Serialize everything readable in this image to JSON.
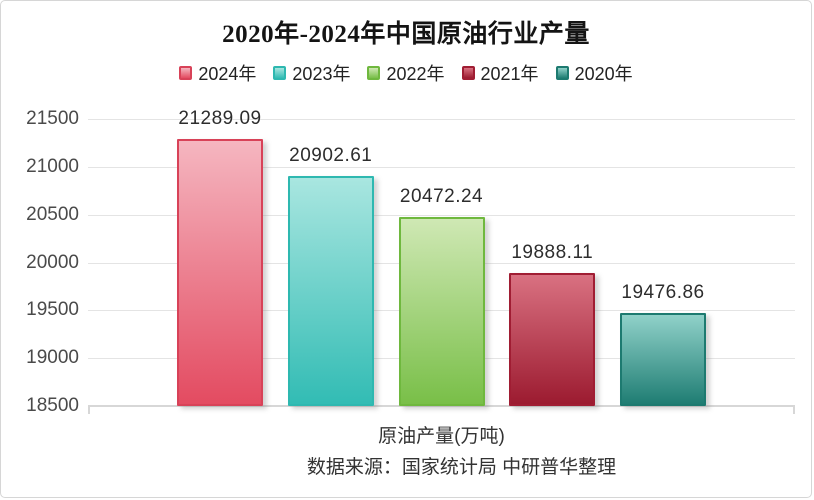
{
  "card": {
    "title": "2020年-2024年中国原油行业产量",
    "xlabel": "原油产量(万吨)",
    "source": "数据来源：国家统计局 中研普华整理"
  },
  "chart_data": {
    "type": "bar",
    "title": "2020年-2024年中国原油行业产量",
    "categories": [
      "2024年",
      "2023年",
      "2022年",
      "2021年",
      "2020年"
    ],
    "values": [
      21289.09,
      20902.61,
      20472.24,
      19888.11,
      19476.86
    ],
    "value_labels": [
      "21289.09",
      "20902.61",
      "20472.24",
      "19888.11",
      "19476.86"
    ],
    "xlabel": "原油产量(万吨)",
    "ylabel": "",
    "ylim": [
      18500,
      21500
    ],
    "yticks": [
      21500,
      21000,
      20500,
      20000,
      19500,
      19000,
      18500
    ],
    "grid": true,
    "legend_position": "top",
    "legend_entries": [
      "2024年",
      "2023年",
      "2022年",
      "2021年",
      "2020年"
    ],
    "source_note": "数据来源：国家统计局 中研普华整理",
    "series_colors": [
      {
        "name": "2024年",
        "border": "#d84258",
        "fill_top": "#f5b6c0",
        "fill_bottom": "#e34b61"
      },
      {
        "name": "2023年",
        "border": "#2eb8b0",
        "fill_top": "#a9e6e0",
        "fill_bottom": "#32bcb4"
      },
      {
        "name": "2022年",
        "border": "#6fb83e",
        "fill_top": "#cfe8b4",
        "fill_bottom": "#79bf48"
      },
      {
        "name": "2021年",
        "border": "#a01d33",
        "fill_top": "#d97181",
        "fill_bottom": "#9c1b30"
      },
      {
        "name": "2020年",
        "border": "#1d7a70",
        "fill_top": "#90d1c9",
        "fill_bottom": "#1f7d73"
      }
    ],
    "text_colors": {
      "title": "#141414",
      "tick": "#4a4a4a",
      "value": "#2d2d2d",
      "footer": "#333333"
    },
    "grid_color": "#e4e4e4"
  }
}
